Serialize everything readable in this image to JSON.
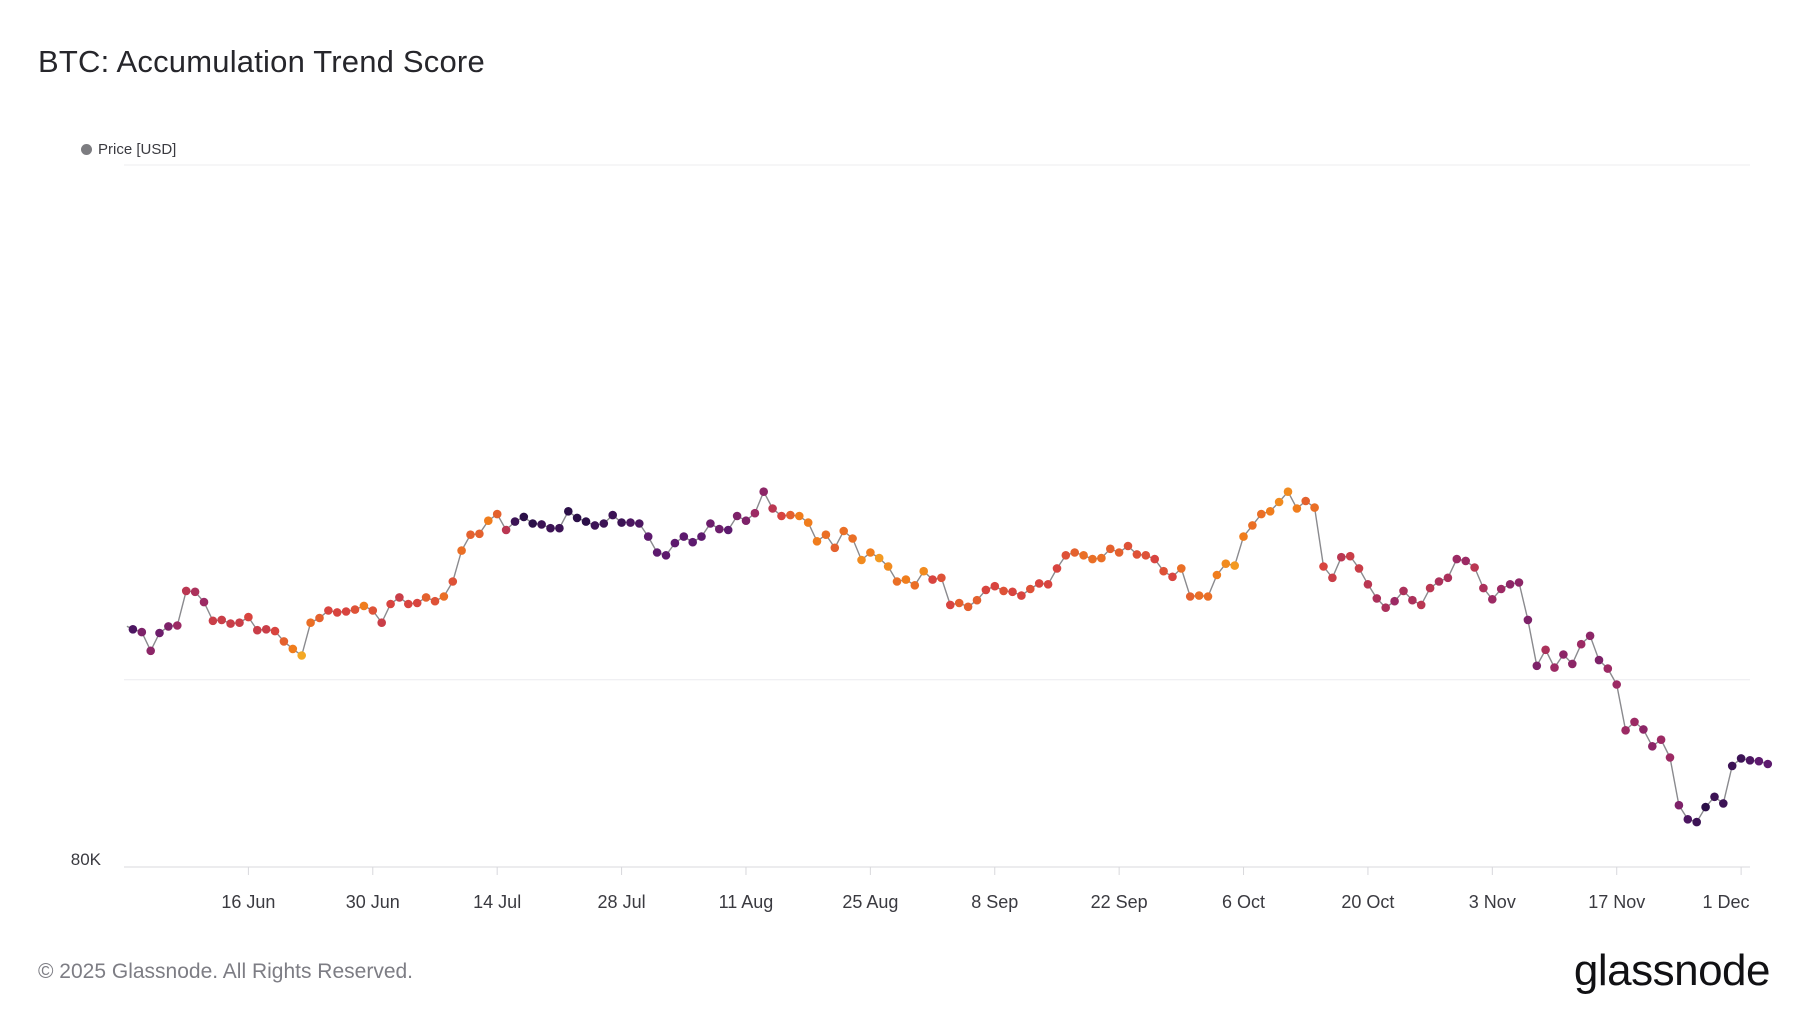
{
  "header": {
    "title": "BTC: Accumulation Trend Score"
  },
  "legend": {
    "label": "Price [USD]",
    "color": "#7c7c80"
  },
  "footer": {
    "copyright": "© 2025 Glassnode. All Rights Reserved.",
    "brand": "glassnode"
  },
  "colors": {
    "line": "#8a8a8e",
    "grid": "#ececef",
    "axis": "#d8d8dc",
    "tick_text": "#3a3a40"
  },
  "chart_data": {
    "type": "scatter",
    "title": "BTC: Accumulation Trend Score",
    "xlabel": "",
    "ylabel": "",
    "x_start": "2025-06-03",
    "xlim": [
      "2025-06-02",
      "2025-12-02"
    ],
    "ylim": [
      80000,
      155000
    ],
    "y_ticks": [
      {
        "value": 80000,
        "label": "80K"
      }
    ],
    "grid": true,
    "x_ticks": [
      {
        "date": "2025-06-16",
        "label": "16 Jun"
      },
      {
        "date": "2025-06-30",
        "label": "30 Jun"
      },
      {
        "date": "2025-07-14",
        "label": "14 Jul"
      },
      {
        "date": "2025-07-28",
        "label": "28 Jul"
      },
      {
        "date": "2025-08-11",
        "label": "11 Aug"
      },
      {
        "date": "2025-08-25",
        "label": "25 Aug"
      },
      {
        "date": "2025-09-08",
        "label": "8 Sep"
      },
      {
        "date": "2025-09-22",
        "label": "22 Sep"
      },
      {
        "date": "2025-10-06",
        "label": "6 Oct"
      },
      {
        "date": "2025-10-20",
        "label": "20 Oct"
      },
      {
        "date": "2025-11-03",
        "label": "3 Nov"
      },
      {
        "date": "2025-11-17",
        "label": "17 Nov"
      },
      {
        "date": "2025-12-01",
        "label": "1 Dec"
      }
    ],
    "color_scale": [
      "#1a0b3b",
      "#5d1a6e",
      "#9c2a64",
      "#d8443f",
      "#f07d1d",
      "#f5b626"
    ],
    "series": [
      {
        "name": "Price [USD]",
        "values": [
          105400,
          105100,
          103100,
          105000,
          105700,
          105800,
          109500,
          109400,
          108300,
          106300,
          106400,
          106000,
          106100,
          106700,
          105300,
          105400,
          105200,
          104100,
          103300,
          102600,
          106100,
          106600,
          107400,
          107200,
          107300,
          107500,
          107900,
          107400,
          106100,
          108100,
          108800,
          108100,
          108200,
          108800,
          108400,
          108900,
          110500,
          113800,
          115500,
          115600,
          117000,
          117700,
          116000,
          116900,
          117400,
          116700,
          116600,
          116200,
          116200,
          118000,
          117300,
          116900,
          116500,
          116700,
          117600,
          116800,
          116800,
          116700,
          115300,
          113600,
          113300,
          114600,
          115300,
          114700,
          115300,
          116700,
          116100,
          116000,
          117500,
          117000,
          117800,
          120100,
          118300,
          117500,
          117600,
          117500,
          116800,
          114800,
          115500,
          114100,
          115900,
          115100,
          112800,
          113600,
          113000,
          112100,
          110500,
          110700,
          110100,
          111600,
          110700,
          110900,
          108000,
          108200,
          107800,
          108500,
          109600,
          110000,
          109500,
          109400,
          109000,
          109700,
          110300,
          110200,
          111900,
          113300,
          113600,
          113300,
          112900,
          113000,
          114000,
          113600,
          114300,
          113400,
          113300,
          112900,
          111600,
          111000,
          111900,
          108900,
          109000,
          108900,
          111200,
          112400,
          112200,
          115300,
          116500,
          117700,
          118000,
          119000,
          120100,
          118300,
          119100,
          118400,
          112100,
          110900,
          113100,
          113200,
          111900,
          110200,
          108700,
          107700,
          108400,
          109500,
          108500,
          108000,
          109800,
          110500,
          110900,
          112900,
          112700,
          112000,
          109800,
          108600,
          109700,
          110200,
          110400,
          106400,
          101500,
          103200,
          101300,
          102700,
          101700,
          103800,
          104700,
          102100,
          101200,
          99500,
          94600,
          95500,
          94700,
          92900,
          93600,
          91700,
          86600,
          85100,
          84800,
          86400,
          87500,
          86800,
          90800,
          91600,
          91400,
          91300,
          91000
        ],
        "scores": [
          0.15,
          0.3,
          0.35,
          0.25,
          0.3,
          0.4,
          0.5,
          0.45,
          0.4,
          0.55,
          0.55,
          0.55,
          0.55,
          0.6,
          0.55,
          0.55,
          0.6,
          0.7,
          0.8,
          0.95,
          0.75,
          0.7,
          0.6,
          0.6,
          0.6,
          0.65,
          0.8,
          0.65,
          0.55,
          0.6,
          0.55,
          0.6,
          0.6,
          0.7,
          0.65,
          0.75,
          0.65,
          0.75,
          0.7,
          0.7,
          0.8,
          0.7,
          0.5,
          0.1,
          0.05,
          0.05,
          0.1,
          0.1,
          0.1,
          0.05,
          0.05,
          0.05,
          0.1,
          0.1,
          0.1,
          0.1,
          0.15,
          0.15,
          0.2,
          0.2,
          0.2,
          0.2,
          0.2,
          0.2,
          0.2,
          0.25,
          0.25,
          0.2,
          0.3,
          0.3,
          0.4,
          0.35,
          0.5,
          0.6,
          0.7,
          0.8,
          0.8,
          0.8,
          0.75,
          0.7,
          0.75,
          0.75,
          0.85,
          0.8,
          0.9,
          0.85,
          0.75,
          0.8,
          0.75,
          0.85,
          0.6,
          0.65,
          0.6,
          0.7,
          0.7,
          0.7,
          0.6,
          0.6,
          0.65,
          0.6,
          0.6,
          0.65,
          0.6,
          0.6,
          0.6,
          0.65,
          0.7,
          0.75,
          0.75,
          0.75,
          0.7,
          0.7,
          0.65,
          0.65,
          0.65,
          0.6,
          0.65,
          0.6,
          0.75,
          0.7,
          0.75,
          0.75,
          0.8,
          0.85,
          0.9,
          0.8,
          0.75,
          0.75,
          0.8,
          0.85,
          0.85,
          0.8,
          0.7,
          0.75,
          0.6,
          0.55,
          0.5,
          0.55,
          0.55,
          0.5,
          0.45,
          0.45,
          0.4,
          0.45,
          0.45,
          0.5,
          0.5,
          0.45,
          0.45,
          0.4,
          0.4,
          0.5,
          0.45,
          0.4,
          0.4,
          0.35,
          0.35,
          0.3,
          0.3,
          0.45,
          0.4,
          0.35,
          0.35,
          0.4,
          0.35,
          0.3,
          0.4,
          0.4,
          0.4,
          0.4,
          0.35,
          0.35,
          0.4,
          0.4,
          0.3,
          0.15,
          0.1,
          0.05,
          0.1,
          0.1,
          0.1,
          0.1,
          0.15,
          0.2,
          0.2,
          0.2,
          0.2,
          0.25
        ]
      }
    ]
  }
}
